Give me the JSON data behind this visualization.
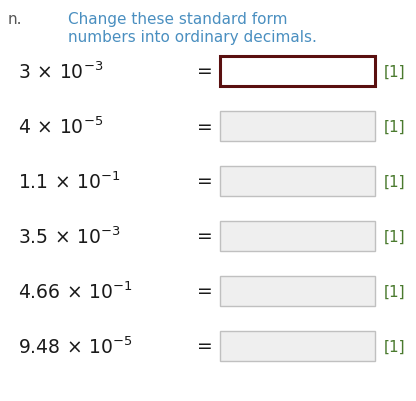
{
  "title_line1": "Change these standard form",
  "title_line2": "numbers into ordinary decimals.",
  "title_color": "#4a8fc0",
  "label_letter": "n.",
  "label_color": "#555555",
  "rows": [
    {
      "base": "3",
      "exp": "-3",
      "highlighted": true
    },
    {
      "base": "4",
      "exp": "-5",
      "highlighted": false
    },
    {
      "base": "1.1",
      "exp": "-1",
      "highlighted": false
    },
    {
      "base": "3.5",
      "exp": "-3",
      "highlighted": false
    },
    {
      "base": "4.66",
      "exp": "-1",
      "highlighted": false
    },
    {
      "base": "9.48",
      "exp": "-5",
      "highlighted": false
    }
  ],
  "mark_text": "[1]",
  "mark_color": "#4a7a2e",
  "box_facecolor_normal": "#efefef",
  "box_facecolor_highlighted": "#ffffff",
  "box_edgecolor_highlighted": "#5a1010",
  "box_edgecolor_normal": "#c0c0c0",
  "equation_color": "#1a1a1a",
  "background_color": "#ffffff",
  "fig_width": 4.16,
  "fig_height": 4.02,
  "dpi": 100
}
